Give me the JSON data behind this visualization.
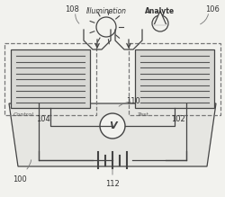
{
  "bg_color": "#f2f2ee",
  "line_color": "#444444",
  "dashed_color": "#777777",
  "panel_line_color": "#555555",
  "labels": {
    "illumination": "Illumination",
    "analyte": "Analyte",
    "control": "Control",
    "test": "Test",
    "V": "V",
    "num_100": "100",
    "num_102": "102",
    "num_104": "104",
    "num_106": "106",
    "num_108": "108",
    "num_110": "110",
    "num_112": "112"
  },
  "platform_facecolor": "#e6e6e2",
  "box_facecolor": "#d8d8d4",
  "white": "#f2f2ee"
}
